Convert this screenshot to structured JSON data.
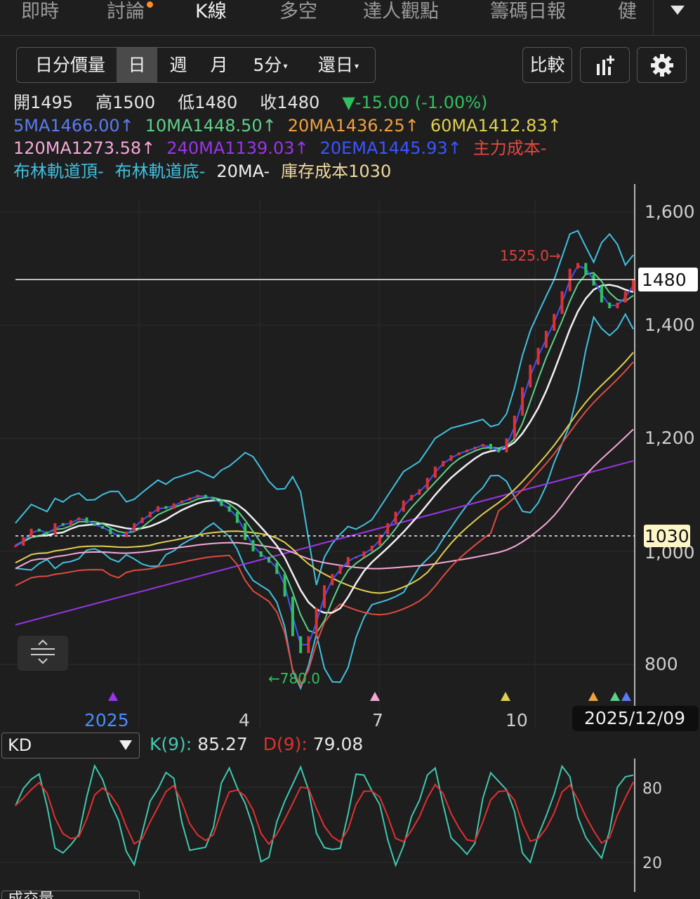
{
  "tabs": [
    "即時",
    "討論",
    "K線",
    "多空",
    "達人觀點",
    "籌碼日報",
    "健"
  ],
  "periods": [
    "日分價量",
    "日",
    "週",
    "月",
    "5分",
    "還日"
  ],
  "compare_label": "比較",
  "ohlc": {
    "open_label": "開",
    "open": "1495",
    "high_label": "高",
    "high": "1500",
    "low_label": "低",
    "low": "1480",
    "close_label": "收",
    "close": "1480",
    "change": "▼-15.00 (-1.00%)"
  },
  "indicators_row1": [
    "5MA1466.00↑",
    "10MA1448.50↑",
    "20MA1436.25↑",
    "60MA1412.83↑"
  ],
  "indicators_row2": [
    "120MA1273.58↑",
    "240MA1139.03↑",
    "20EMA1445.93↑",
    "主力成本-"
  ],
  "indicators_row3": [
    "布林軌道頂-",
    "布林軌道底-",
    "20MA-",
    "庫存成本1030"
  ],
  "colors": {
    "ma5": "#5b7cf0",
    "ma10": "#5fd08a",
    "ma20": "#f0a040",
    "ma60": "#e0d050",
    "ma120": "#f5a8d8",
    "ma240": "#9a35e8",
    "ema20": "#3a55ff",
    "main_cost": "#e04a40",
    "boll": "#40c0e0",
    "white": "#f0f0f0",
    "cost": "#f0d9a0",
    "up": "#e03030",
    "down": "#30c060"
  },
  "price_axis": [
    "1,600",
    "1,400",
    "1,200",
    "1,000",
    "800"
  ],
  "current_price_tag": "1480",
  "cost_tag": "1030",
  "high_marker": "1525.0→",
  "low_marker": "←780.0",
  "time_axis": [
    "2025",
    "4",
    "7",
    "10"
  ],
  "date_tag": "2025/12/09",
  "kd": {
    "selector": "KD",
    "k_label": "K(9):",
    "k_value": "85.27",
    "d_label": "D(9):",
    "d_value": "79.08",
    "axis": [
      "80",
      "20"
    ]
  },
  "volume_selector": "成交量",
  "chart_data": {
    "type": "line",
    "price_range": [
      760,
      1640
    ],
    "close_series": [
      1010,
      1025,
      1040,
      1035,
      1030,
      1050,
      1045,
      1055,
      1060,
      1050,
      1045,
      1040,
      1030,
      1025,
      1035,
      1050,
      1060,
      1070,
      1080,
      1075,
      1085,
      1090,
      1095,
      1100,
      1095,
      1090,
      1080,
      1070,
      1050,
      1020,
      1000,
      990,
      980,
      960,
      920,
      850,
      820,
      850,
      900,
      940,
      960,
      975,
      990,
      990,
      1000,
      1010,
      1030,
      1050,
      1070,
      1090,
      1100,
      1110,
      1130,
      1150,
      1160,
      1170,
      1175,
      1180,
      1185,
      1190,
      1180,
      1175,
      1200,
      1240,
      1290,
      1330,
      1360,
      1390,
      1420,
      1460,
      1500,
      1510,
      1490,
      1470,
      1440,
      1430,
      1440,
      1460,
      1480
    ],
    "kd_range": [
      0,
      100
    ]
  }
}
